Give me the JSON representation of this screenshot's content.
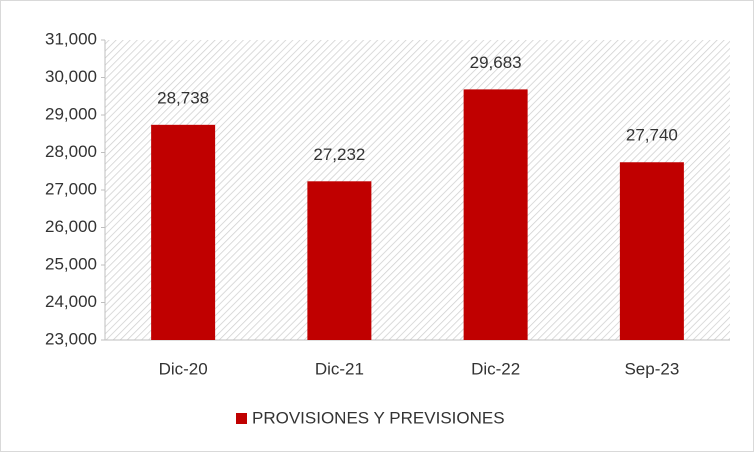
{
  "chart_data": {
    "type": "bar",
    "categories": [
      "Dic-20",
      "Dic-21",
      "Dic-22",
      "Sep-23"
    ],
    "series": [
      {
        "name": "PROVISIONES Y PREVISIONES",
        "color": "#c00000",
        "values": [
          28738,
          27232,
          29683,
          27740
        ],
        "value_labels": [
          "28,738",
          "27,232",
          "29,683",
          "27,740"
        ]
      }
    ],
    "ylim": [
      23000,
      31000
    ],
    "yticks": [
      {
        "value": 23000,
        "label": "23,000"
      },
      {
        "value": 24000,
        "label": "24,000"
      },
      {
        "value": 25000,
        "label": "25,000"
      },
      {
        "value": 26000,
        "label": "26,000"
      },
      {
        "value": 27000,
        "label": "27,000"
      },
      {
        "value": 28000,
        "label": "28,000"
      },
      {
        "value": 29000,
        "label": "29,000"
      },
      {
        "value": 30000,
        "label": "30,000"
      },
      {
        "value": 31000,
        "label": "31,000"
      }
    ],
    "legend": "bottom"
  }
}
